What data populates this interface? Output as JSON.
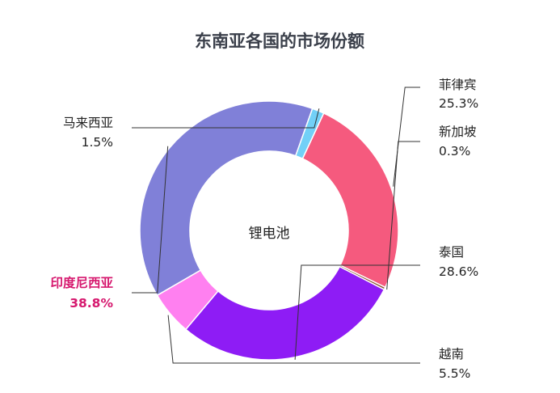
{
  "chart_data": {
    "type": "pie",
    "variant": "donut",
    "title": "东南亚各国的市场份额",
    "center_label": "锂电池",
    "slices": [
      {
        "name": "菲律宾",
        "value": 25.3,
        "label": "25.3%",
        "color": "#f55a7e"
      },
      {
        "name": "新加坡",
        "value": 0.3,
        "label": "0.3%",
        "color": "#8b4a2b"
      },
      {
        "name": "泰国",
        "value": 28.6,
        "label": "28.6%",
        "color": "#8e1cf5"
      },
      {
        "name": "越南",
        "value": 5.5,
        "label": "5.5%",
        "color": "#ff80f0"
      },
      {
        "name": "印度尼西亚",
        "value": 38.8,
        "label": "38.8%",
        "color": "#8080d8",
        "highlight": true,
        "highlight_color": "#d6186e"
      },
      {
        "name": "马来西亚",
        "value": 1.5,
        "label": "1.5%",
        "color": "#72d0f7"
      }
    ],
    "legend": "none",
    "grid": false
  }
}
